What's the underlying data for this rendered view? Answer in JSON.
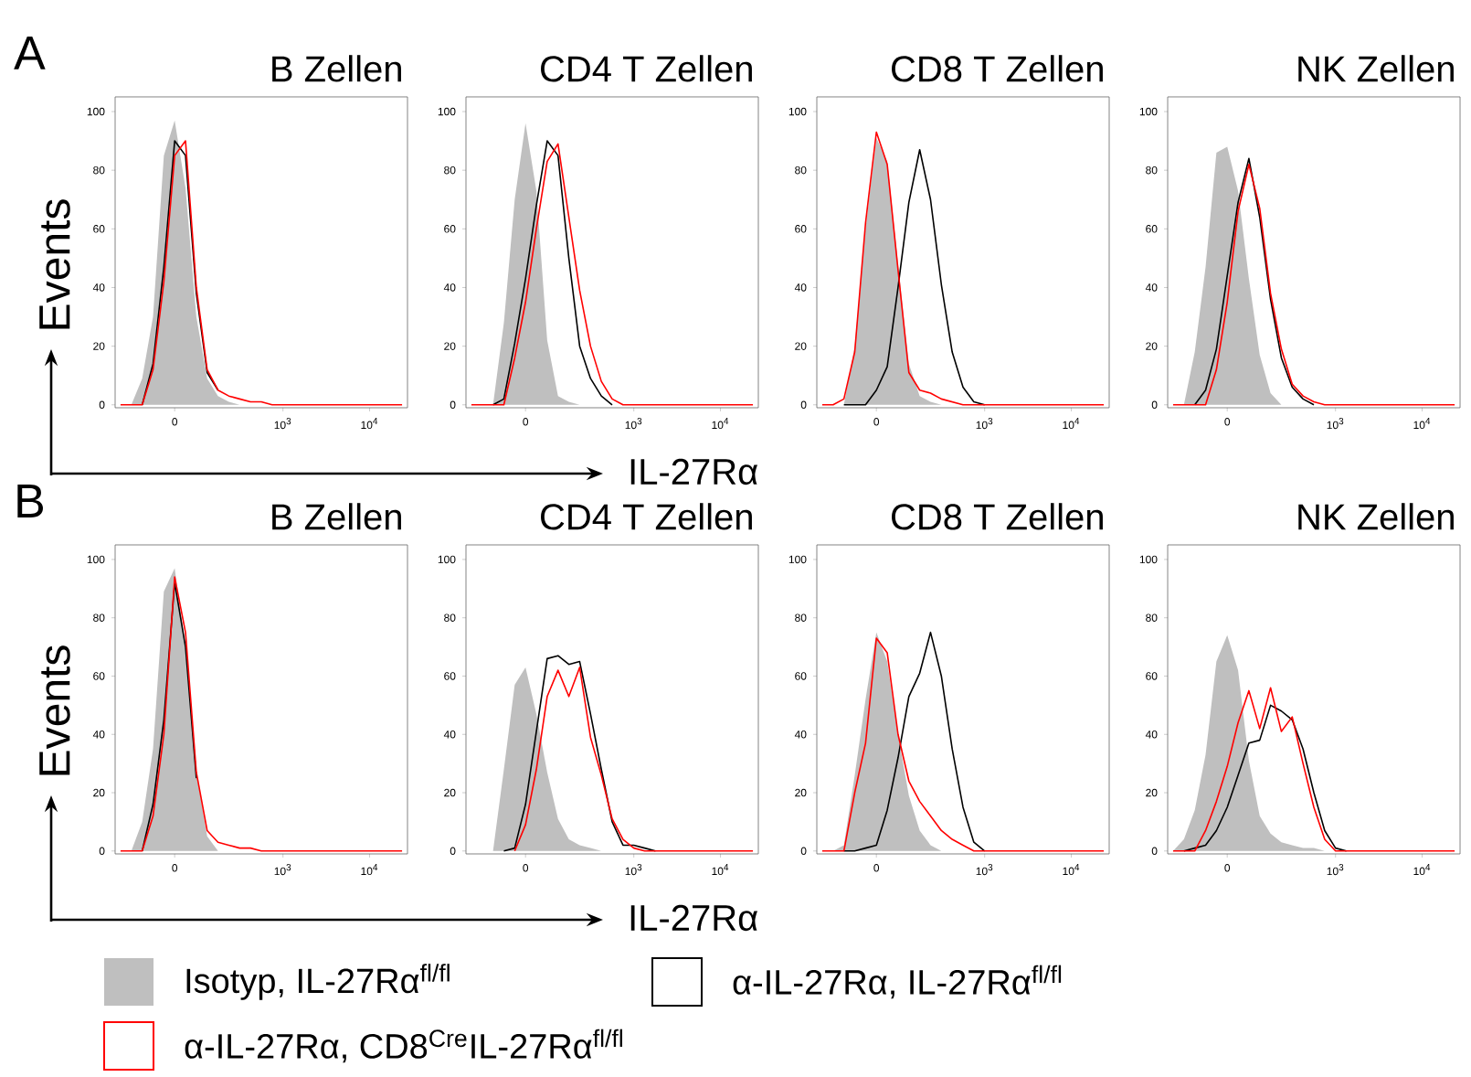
{
  "chart_data": [
    {
      "type": "line",
      "title": "B Zellen",
      "ylabel": "Events",
      "annotations": [
        "A"
      ],
      "categories": [
        null,
        null,
        null,
        null,
        null,
        "0",
        null,
        null,
        null,
        null,
        null,
        null,
        null,
        null,
        null,
        "10$^{3}$",
        null,
        null,
        null,
        null,
        null,
        null,
        null,
        "10$^{4}$",
        null,
        null,
        null
      ],
      "ylim": [
        -1,
        105
      ],
      "yticks": [
        0,
        20,
        40,
        60,
        80,
        100
      ],
      "series": [
        {
          "type": "area",
          "color": "#bfbfbf",
          "values": [
            0,
            0,
            9,
            30,
            85,
            97,
            74,
            30,
            9,
            3,
            1,
            0,
            0,
            0,
            0,
            0,
            0,
            0,
            0,
            0,
            0,
            0,
            0,
            0,
            0,
            0,
            0
          ]
        },
        {
          "color": "#000000",
          "values": [
            null,
            null,
            0,
            14,
            47,
            90,
            85,
            38,
            11,
            5,
            null,
            null,
            null,
            null,
            null,
            null,
            null,
            null,
            null,
            null,
            null,
            null,
            null,
            null,
            null,
            null,
            null
          ]
        },
        {
          "color": "#ff0000",
          "values": [
            0,
            0,
            0,
            12,
            42,
            85,
            90,
            40,
            12,
            5,
            3,
            2,
            1,
            1,
            0,
            0,
            0,
            0,
            0,
            0,
            0,
            0,
            0,
            0,
            0,
            0,
            0
          ]
        }
      ]
    },
    {
      "type": "line",
      "title": "CD4 T Zellen",
      "xlabel": "IL-27Rα",
      "categories": [
        null,
        null,
        null,
        null,
        null,
        "0",
        null,
        null,
        null,
        null,
        null,
        null,
        null,
        null,
        null,
        "10$^{3}$",
        null,
        null,
        null,
        null,
        null,
        null,
        null,
        "10$^{4}$",
        null,
        null,
        null
      ],
      "ylim": [
        -1,
        105
      ],
      "yticks": [
        0,
        20,
        40,
        60,
        80,
        100
      ],
      "series": [
        {
          "type": "area",
          "color": "#bfbfbf",
          "values": [
            0,
            0,
            0,
            28,
            70,
            96,
            73,
            22,
            3,
            1,
            0,
            0,
            0,
            0,
            0,
            0,
            0,
            0,
            0,
            0,
            0,
            0,
            0,
            0,
            0,
            0,
            0
          ]
        },
        {
          "color": "#000000",
          "values": [
            null,
            null,
            0,
            2,
            21,
            43,
            68,
            90,
            85,
            50,
            20,
            9,
            3,
            0,
            null,
            null,
            null,
            null,
            null,
            null,
            null,
            null,
            null,
            null,
            null,
            null,
            null
          ]
        },
        {
          "color": "#ff0000",
          "values": [
            0,
            0,
            0,
            0,
            16,
            35,
            60,
            83,
            89,
            64,
            39,
            20,
            8,
            2,
            0,
            0,
            0,
            0,
            0,
            0,
            0,
            0,
            0,
            0,
            0,
            0,
            0
          ]
        }
      ]
    },
    {
      "type": "line",
      "title": "CD8 T Zellen",
      "categories": [
        null,
        null,
        null,
        null,
        null,
        "0",
        null,
        null,
        null,
        null,
        null,
        null,
        null,
        null,
        null,
        "10$^{3}$",
        null,
        null,
        null,
        null,
        null,
        null,
        null,
        "10$^{4}$",
        null,
        null,
        null
      ],
      "ylim": [
        -1,
        105
      ],
      "yticks": [
        0,
        20,
        40,
        60,
        80,
        100
      ],
      "series": [
        {
          "type": "area",
          "color": "#bfbfbf",
          "values": [
            0,
            0,
            0,
            20,
            60,
            91,
            83,
            48,
            14,
            3,
            1,
            0,
            0,
            0,
            0,
            0,
            0,
            0,
            0,
            0,
            0,
            0,
            0,
            0,
            0,
            0,
            0
          ]
        },
        {
          "color": "#000000",
          "values": [
            null,
            null,
            0,
            0,
            0,
            5,
            13,
            40,
            69,
            87,
            70,
            41,
            18,
            6,
            1,
            0,
            null,
            null,
            null,
            null,
            null,
            null,
            null,
            null,
            null,
            null,
            null
          ]
        },
        {
          "color": "#ff0000",
          "values": [
            0,
            0,
            2,
            18,
            62,
            93,
            82,
            46,
            11,
            5,
            4,
            2,
            1,
            0,
            0,
            0,
            0,
            0,
            0,
            0,
            0,
            0,
            0,
            0,
            0,
            0,
            0
          ]
        }
      ]
    },
    {
      "type": "line",
      "title": "NK Zellen",
      "categories": [
        null,
        null,
        null,
        null,
        null,
        "0",
        null,
        null,
        null,
        null,
        null,
        null,
        null,
        null,
        null,
        "10$^{3}$",
        null,
        null,
        null,
        null,
        null,
        null,
        null,
        "10$^{4}$",
        null,
        null,
        null
      ],
      "ylim": [
        -1,
        105
      ],
      "yticks": [
        0,
        20,
        40,
        60,
        80,
        100
      ],
      "series": [
        {
          "type": "area",
          "color": "#bfbfbf",
          "values": [
            0,
            0,
            18,
            47,
            86,
            88,
            73,
            43,
            17,
            4,
            0,
            0,
            0,
            0,
            0,
            0,
            0,
            0,
            0,
            0,
            0,
            0,
            0,
            0,
            0,
            0,
            0
          ]
        },
        {
          "color": "#000000",
          "values": [
            null,
            null,
            0,
            5,
            19,
            44,
            69,
            84,
            64,
            36,
            16,
            6,
            2,
            0,
            null,
            null,
            null,
            null,
            null,
            null,
            null,
            null,
            null,
            null,
            null,
            null,
            null
          ]
        },
        {
          "color": "#ff0000",
          "values": [
            0,
            0,
            0,
            0,
            12,
            35,
            66,
            82,
            67,
            38,
            19,
            7,
            3,
            1,
            0,
            0,
            0,
            0,
            0,
            0,
            0,
            0,
            0,
            0,
            0,
            0,
            0
          ]
        }
      ]
    },
    {
      "type": "line",
      "title": "B Zellen",
      "ylabel": "Events",
      "annotations": [
        "B"
      ],
      "categories": [
        null,
        null,
        null,
        null,
        null,
        "0",
        null,
        null,
        null,
        null,
        null,
        null,
        null,
        null,
        null,
        "10$^{3}$",
        null,
        null,
        null,
        null,
        null,
        null,
        null,
        "10$^{4}$",
        null,
        null,
        null
      ],
      "ylim": [
        -1,
        105
      ],
      "yticks": [
        0,
        20,
        40,
        60,
        80,
        100
      ],
      "series": [
        {
          "type": "area",
          "color": "#bfbfbf",
          "values": [
            0,
            0,
            10,
            35,
            89,
            97,
            70,
            27,
            5,
            0,
            0,
            0,
            0,
            0,
            0,
            0,
            0,
            0,
            0,
            0,
            0,
            0,
            0,
            0,
            0,
            0,
            0
          ]
        },
        {
          "color": "#000000",
          "values": [
            null,
            null,
            0,
            16,
            45,
            92,
            70,
            25,
            null,
            null,
            null,
            null,
            null,
            null,
            null,
            null,
            null,
            null,
            null,
            null,
            null,
            null,
            null,
            null,
            null,
            null,
            null
          ]
        },
        {
          "color": "#ff0000",
          "values": [
            0,
            0,
            0,
            12,
            40,
            94,
            75,
            27,
            7,
            3,
            2,
            1,
            1,
            0,
            0,
            0,
            0,
            0,
            0,
            0,
            0,
            0,
            0,
            0,
            0,
            0,
            0
          ]
        }
      ]
    },
    {
      "type": "line",
      "title": "CD4 T Zellen",
      "xlabel": "IL-27Rα",
      "categories": [
        null,
        null,
        null,
        null,
        null,
        "0",
        null,
        null,
        null,
        null,
        null,
        null,
        null,
        null,
        null,
        "10$^{3}$",
        null,
        null,
        null,
        null,
        null,
        null,
        null,
        "10$^{4}$",
        null,
        null,
        null
      ],
      "ylim": [
        -1,
        105
      ],
      "yticks": [
        0,
        20,
        40,
        60,
        80,
        100
      ],
      "series": [
        {
          "type": "area",
          "color": "#bfbfbf",
          "values": [
            0,
            0,
            0,
            28,
            57,
            63,
            47,
            27,
            11,
            4,
            2,
            1,
            0,
            0,
            0,
            0,
            0,
            0,
            0,
            0,
            0,
            0,
            0,
            0,
            0,
            0,
            0
          ]
        },
        {
          "color": "#000000",
          "values": [
            null,
            null,
            null,
            0,
            1,
            16,
            41,
            66,
            67,
            64,
            65,
            47,
            28,
            10,
            2,
            2,
            1,
            0,
            null,
            null,
            null,
            null,
            null,
            null,
            null,
            null,
            null
          ]
        },
        {
          "color": "#ff0000",
          "values": [
            null,
            null,
            null,
            null,
            0,
            9,
            28,
            53,
            62,
            53,
            63,
            39,
            26,
            11,
            4,
            1,
            0,
            0,
            0,
            0,
            0,
            0,
            0,
            0,
            0,
            0,
            0
          ]
        }
      ]
    },
    {
      "type": "line",
      "title": "CD8 T Zellen",
      "categories": [
        null,
        null,
        null,
        null,
        null,
        "0",
        null,
        null,
        null,
        null,
        null,
        null,
        null,
        null,
        null,
        "10$^{3}$",
        null,
        null,
        null,
        null,
        null,
        null,
        null,
        "10$^{4}$",
        null,
        null,
        null
      ],
      "ylim": [
        -1,
        105
      ],
      "yticks": [
        0,
        20,
        40,
        60,
        80,
        100
      ],
      "series": [
        {
          "type": "area",
          "color": "#bfbfbf",
          "values": [
            0,
            0,
            2,
            26,
            52,
            75,
            65,
            40,
            19,
            7,
            2,
            0,
            0,
            0,
            0,
            0,
            0,
            0,
            0,
            0,
            0,
            0,
            0,
            0,
            0,
            0,
            0
          ]
        },
        {
          "color": "#000000",
          "values": [
            null,
            null,
            0,
            0,
            1,
            2,
            14,
            32,
            53,
            61,
            75,
            60,
            35,
            15,
            3,
            0,
            null,
            null,
            null,
            null,
            null,
            null,
            null,
            null,
            null,
            null,
            null
          ]
        },
        {
          "color": "#ff0000",
          "values": [
            0,
            0,
            0,
            20,
            37,
            73,
            68,
            40,
            24,
            17,
            12,
            7,
            4,
            2,
            0,
            0,
            0,
            0,
            0,
            0,
            0,
            0,
            0,
            0,
            0,
            0,
            0
          ]
        }
      ]
    },
    {
      "type": "line",
      "title": "NK Zellen",
      "legend": "bottom",
      "categories": [
        null,
        null,
        null,
        null,
        null,
        "0",
        null,
        null,
        null,
        null,
        null,
        null,
        null,
        null,
        null,
        "10$^{3}$",
        null,
        null,
        null,
        null,
        null,
        null,
        null,
        "10$^{4}$",
        null,
        null,
        null
      ],
      "ylim": [
        -1,
        105
      ],
      "yticks": [
        0,
        20,
        40,
        60,
        80,
        100
      ],
      "series": [
        {
          "type": "area",
          "name": "Isotyp, IL-27Rα$^{fl/fl}$",
          "color": "#bfbfbf",
          "values": [
            0,
            4,
            14,
            33,
            65,
            74,
            62,
            31,
            12,
            6,
            3,
            2,
            1,
            1,
            0,
            0,
            0,
            0,
            0,
            0,
            0,
            0,
            0,
            0,
            0,
            0,
            0
          ]
        },
        {
          "name": "α-IL-27Rα, IL-27Rα$^{fl/fl}$",
          "color": "#000000",
          "values": [
            null,
            0,
            1,
            2,
            7,
            15,
            26,
            37,
            38,
            50,
            48,
            45,
            35,
            20,
            7,
            1,
            0,
            null,
            null,
            null,
            null,
            null,
            null,
            null,
            null,
            null,
            null
          ]
        },
        {
          "name": "α-IL-27Rα, CD8$^{Cre}$IL-27Rα$^{fl/fl}$",
          "color": "#ff0000",
          "values": [
            0,
            0,
            0,
            7,
            17,
            29,
            44,
            55,
            42,
            56,
            41,
            46,
            30,
            15,
            4,
            0,
            0,
            0,
            0,
            0,
            0,
            0,
            0,
            0,
            0,
            0,
            0
          ]
        }
      ]
    }
  ]
}
